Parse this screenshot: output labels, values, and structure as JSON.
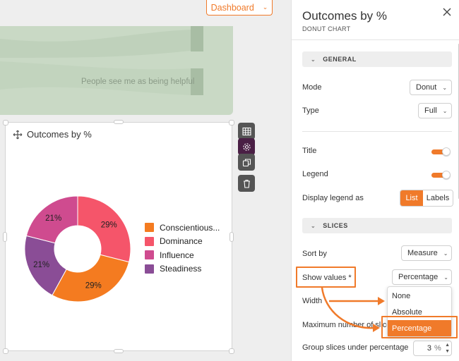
{
  "header": {
    "dashboard_label": "Dashboard"
  },
  "sankey": {
    "label": "People see me as being helpful"
  },
  "widget": {
    "title": "Outcomes by %",
    "legend": [
      "Conscientious...",
      "Dominance",
      "Influence",
      "Steadiness"
    ]
  },
  "chart_data": {
    "type": "pie",
    "variant": "donut",
    "title": "Outcomes by %",
    "categories": [
      "Conscientiousness",
      "Dominance",
      "Influence",
      "Steadiness"
    ],
    "values": [
      29,
      29,
      21,
      21
    ],
    "labels": [
      "29%",
      "29%",
      "21%",
      "21%"
    ],
    "colors": [
      "#f47b20",
      "#f5556a",
      "#cf4b8f",
      "#8a4d96"
    ],
    "legend": "right"
  },
  "panel": {
    "title": "Outcomes by %",
    "subtitle": "DONUT CHART",
    "general_label": "GENERAL",
    "mode_label": "Mode",
    "mode_value": "Donut",
    "type_label": "Type",
    "type_value": "Full",
    "title_label": "Title",
    "title_toggle": true,
    "legend_label": "Legend",
    "legend_toggle": true,
    "display_legend_label": "Display legend as",
    "display_legend_options": [
      "List",
      "Labels"
    ],
    "display_legend_selected": "List",
    "slices_label": "SLICES",
    "sort_by_label": "Sort by",
    "sort_by_value": "Measure",
    "show_values_label": "Show values *",
    "show_values_value": "Percentage",
    "show_values_options": [
      "None",
      "Absolute",
      "Percentage"
    ],
    "width_label": "Width",
    "max_slices_label": "Maximum number of slice",
    "group_label": "Group slices under percentage",
    "group_value": "3",
    "group_unit": "%"
  },
  "colors": {
    "accent": "#f07a2a",
    "toolbar_active": "#4a1f45"
  }
}
